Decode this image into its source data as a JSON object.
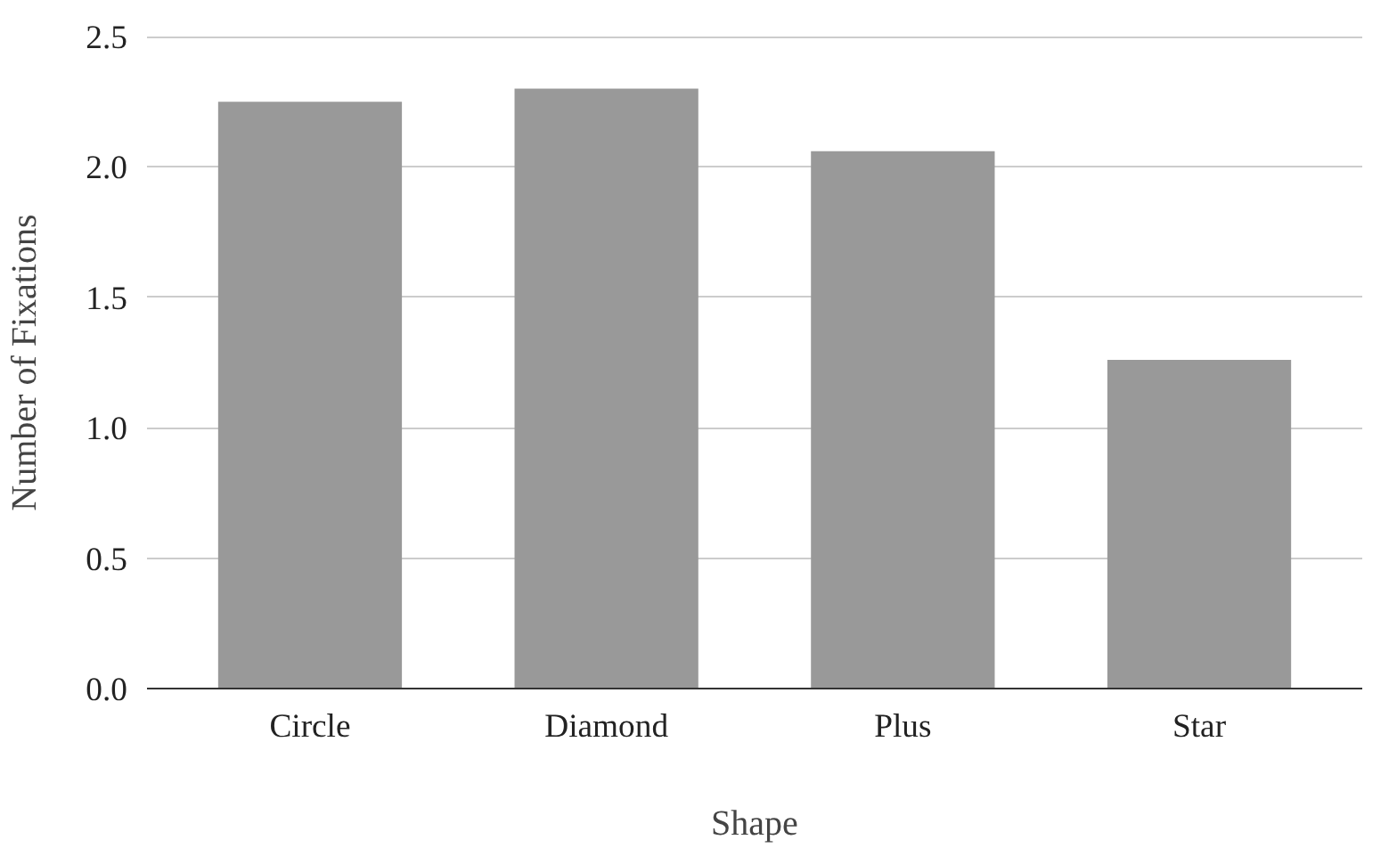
{
  "chart_data": {
    "type": "bar",
    "xlabel": "Shape",
    "ylabel": "Number of Fixations",
    "categories": [
      "Circle",
      "Diamond",
      "Plus",
      "Star"
    ],
    "values": [
      2.25,
      2.3,
      2.06,
      1.26
    ],
    "color": "#999999",
    "ylim": [
      0,
      2.5
    ],
    "yticks": [
      {
        "value": 0,
        "label": "0.0"
      },
      {
        "value": 0.5,
        "label": "0.5"
      },
      {
        "value": 1,
        "label": "1.0"
      },
      {
        "value": 1.5,
        "label": "1.5"
      },
      {
        "value": 2,
        "label": "2.0"
      },
      {
        "value": 2.5,
        "label": "2.5"
      }
    ],
    "grid": "y"
  }
}
